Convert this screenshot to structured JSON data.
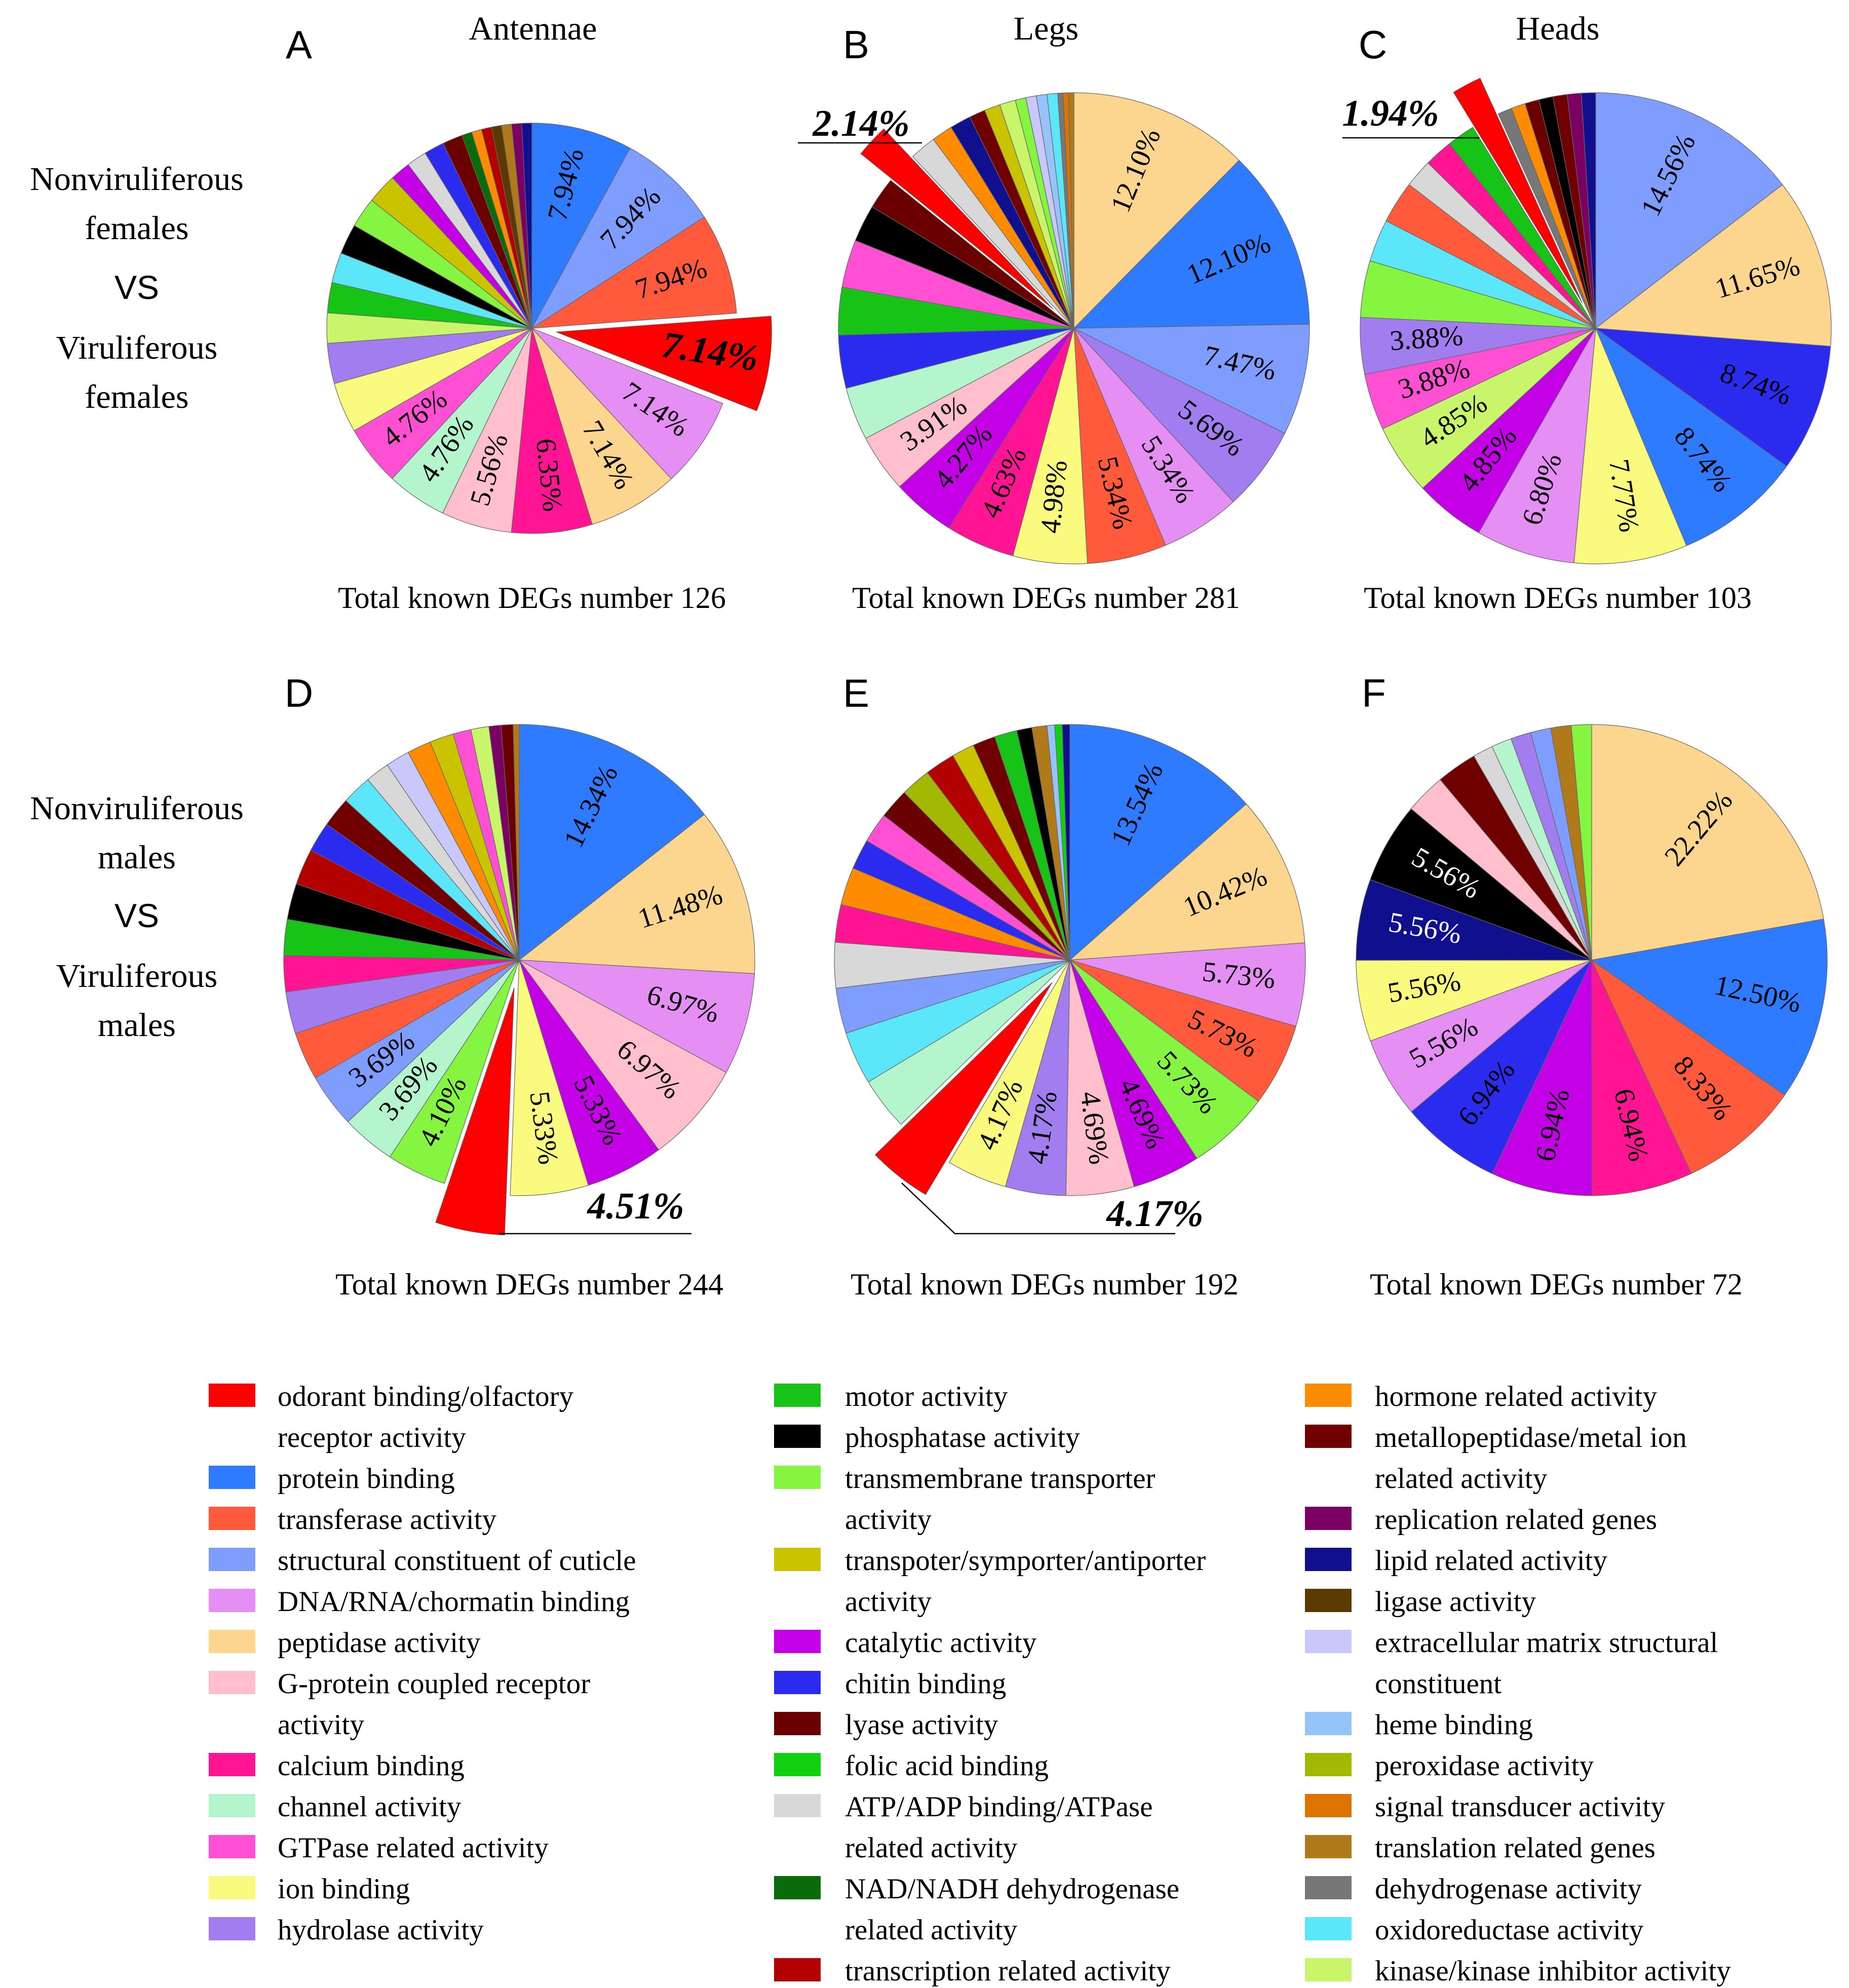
{
  "row_labels": [
    [
      "Nonviruliferous",
      "females",
      "VS",
      "Viruliferous",
      "females"
    ],
    [
      "Nonviruliferous",
      "males",
      "VS",
      "Viruliferous",
      "males"
    ]
  ],
  "colors": {
    "red": "#ff0000",
    "blue": "#2f7bff",
    "periwinkle": "#7f9dff",
    "tomato": "#ff5a3c",
    "violet": "#e58ff5",
    "wheat": "#fcd58e",
    "pink": "#ffbfcc",
    "magenta": "#ff1493",
    "mint": "#b5f5cd",
    "hotpink": "#ff4fd3",
    "yellow": "#fafa7f",
    "purple": "#a27df0",
    "green": "#17c317",
    "black": "#000000",
    "lime": "#85f542",
    "olive": "#c9c300",
    "purple2": "#c300e6",
    "blue2": "#2b2bf0",
    "maroon": "#6b0000",
    "green2": "#12cf12",
    "silver": "#d8d8d8",
    "darkgreen": "#0a6b0a",
    "crimson": "#b30000",
    "orange": "#ff8c00",
    "darkred": "#700000",
    "plum": "#7a0063",
    "navy": "#10108f",
    "brown": "#5a3a00",
    "lavender": "#c8c8fa",
    "skyblue": "#94c4fa",
    "olive2": "#a3b800",
    "orange2": "#dd7300",
    "bronze": "#b07a1a",
    "gray": "#777777",
    "cyan": "#5ce6fa",
    "yellowgreen": "#c9f56a"
  },
  "legend": [
    {
      "lines": [
        "odorant binding/olfactory",
        "receptor activity"
      ],
      "color": "red"
    },
    {
      "lines": [
        "protein binding"
      ],
      "color": "blue"
    },
    {
      "lines": [
        "transferase activity"
      ],
      "color": "tomato"
    },
    {
      "lines": [
        "structural constituent of cuticle"
      ],
      "color": "periwinkle"
    },
    {
      "lines": [
        "DNA/RNA/chormatin binding"
      ],
      "color": "violet"
    },
    {
      "lines": [
        "peptidase activity"
      ],
      "color": "wheat"
    },
    {
      "lines": [
        "G-protein coupled receptor",
        "activity"
      ],
      "color": "pink"
    },
    {
      "lines": [
        "calcium binding"
      ],
      "color": "magenta"
    },
    {
      "lines": [
        "channel activity"
      ],
      "color": "mint"
    },
    {
      "lines": [
        "GTPase related activity"
      ],
      "color": "hotpink"
    },
    {
      "lines": [
        "ion binding"
      ],
      "color": "yellow"
    },
    {
      "lines": [
        "hydrolase activity"
      ],
      "color": "purple"
    },
    {
      "lines": [
        "motor activity"
      ],
      "color": "green"
    },
    {
      "lines": [
        "phosphatase activity"
      ],
      "color": "black"
    },
    {
      "lines": [
        "transmembrane transporter",
        "activity"
      ],
      "color": "lime"
    },
    {
      "lines": [
        "transpoter/symporter/antiporter",
        "activity"
      ],
      "color": "olive"
    },
    {
      "lines": [
        "catalytic activity"
      ],
      "color": "purple2"
    },
    {
      "lines": [
        "chitin binding"
      ],
      "color": "blue2"
    },
    {
      "lines": [
        "lyase activity"
      ],
      "color": "maroon"
    },
    {
      "lines": [
        "folic acid binding"
      ],
      "color": "green2"
    },
    {
      "lines": [
        "ATP/ADP binding/ATPase",
        "related activity"
      ],
      "color": "silver"
    },
    {
      "lines": [
        "NAD/NADH dehydrogenase",
        "related activity"
      ],
      "color": "darkgreen"
    },
    {
      "lines": [
        "transcription related activity"
      ],
      "color": "crimson"
    },
    {
      "lines": [
        "hormone related activity"
      ],
      "color": "orange"
    },
    {
      "lines": [
        "metallopeptidase/metal ion",
        "related activity"
      ],
      "color": "darkred"
    },
    {
      "lines": [
        "replication related genes"
      ],
      "color": "plum"
    },
    {
      "lines": [
        "lipid related activity"
      ],
      "color": "navy"
    },
    {
      "lines": [
        "ligase activity"
      ],
      "color": "brown"
    },
    {
      "lines": [
        "extracellular matrix structural",
        "constituent"
      ],
      "color": "lavender"
    },
    {
      "lines": [
        "heme binding"
      ],
      "color": "skyblue"
    },
    {
      "lines": [
        "peroxidase activity"
      ],
      "color": "olive2"
    },
    {
      "lines": [
        "signal transducer activity"
      ],
      "color": "orange2"
    },
    {
      "lines": [
        "translation related genes"
      ],
      "color": "bronze"
    },
    {
      "lines": [
        "dehydrogenase activity"
      ],
      "color": "gray"
    },
    {
      "lines": [
        "oxidoreductase activity"
      ],
      "color": "cyan"
    },
    {
      "lines": [
        "kinase/kinase inhibitor activity"
      ],
      "color": "yellowgreen"
    }
  ],
  "chart_data": [
    {
      "type": "pie",
      "panel": "A",
      "title": "Antennae",
      "total_label": "Total known DEGs number 126",
      "callout": "7.14%",
      "slices": [
        {
          "value": 7.94,
          "label": "7.94%",
          "color": "blue"
        },
        {
          "value": 7.94,
          "label": "7.94%",
          "color": "periwinkle"
        },
        {
          "value": 7.94,
          "label": "7.94%",
          "color": "tomato"
        },
        {
          "value": 7.14,
          "label": "7.14%",
          "color": "red",
          "exploded": true
        },
        {
          "value": 7.14,
          "label": "7.14%",
          "color": "violet"
        },
        {
          "value": 7.14,
          "label": "7.14%",
          "color": "wheat"
        },
        {
          "value": 6.35,
          "label": "6.35%",
          "color": "magenta"
        },
        {
          "value": 5.56,
          "label": "5.56%",
          "color": "pink"
        },
        {
          "value": 4.76,
          "label": "4.76%",
          "color": "mint"
        },
        {
          "value": 4.76,
          "label": "4.76%",
          "color": "hotpink"
        },
        {
          "value": 3.97,
          "color": "yellow"
        },
        {
          "value": 3.17,
          "color": "purple"
        },
        {
          "value": 2.38,
          "color": "yellowgreen"
        },
        {
          "value": 2.38,
          "color": "green"
        },
        {
          "value": 2.38,
          "color": "cyan"
        },
        {
          "value": 2.38,
          "color": "black"
        },
        {
          "value": 2.38,
          "color": "lime"
        },
        {
          "value": 2.38,
          "color": "olive"
        },
        {
          "value": 1.59,
          "color": "purple2"
        },
        {
          "value": 1.59,
          "color": "silver"
        },
        {
          "value": 1.59,
          "color": "blue2"
        },
        {
          "value": 1.59,
          "color": "maroon"
        },
        {
          "value": 0.79,
          "color": "darkgreen"
        },
        {
          "value": 0.79,
          "color": "orange"
        },
        {
          "value": 0.79,
          "color": "crimson"
        },
        {
          "value": 0.79,
          "color": "brown"
        },
        {
          "value": 0.79,
          "color": "bronze"
        },
        {
          "value": 0.79,
          "color": "plum"
        },
        {
          "value": 0.79,
          "color": "navy"
        }
      ]
    },
    {
      "type": "pie",
      "panel": "B",
      "title": "Legs",
      "total_label": "Total known DEGs number 281",
      "callout": "2.14%",
      "slices": [
        {
          "value": 12.1,
          "label": "12.10%",
          "color": "wheat"
        },
        {
          "value": 12.1,
          "label": "12.10%",
          "color": "blue"
        },
        {
          "value": 7.47,
          "label": "7.47%",
          "color": "periwinkle"
        },
        {
          "value": 5.69,
          "label": "5.69%",
          "color": "purple"
        },
        {
          "value": 5.34,
          "label": "5.34%",
          "color": "violet"
        },
        {
          "value": 5.34,
          "label": "5.34%",
          "color": "tomato"
        },
        {
          "value": 4.98,
          "label": "4.98%",
          "color": "yellow"
        },
        {
          "value": 4.63,
          "label": "4.63%",
          "color": "magenta"
        },
        {
          "value": 4.27,
          "label": "4.27%",
          "color": "purple2"
        },
        {
          "value": 3.91,
          "label": "3.91%",
          "color": "pink"
        },
        {
          "value": 3.56,
          "color": "mint"
        },
        {
          "value": 3.56,
          "color": "blue2"
        },
        {
          "value": 3.2,
          "color": "green"
        },
        {
          "value": 3.2,
          "color": "hotpink"
        },
        {
          "value": 2.49,
          "color": "black"
        },
        {
          "value": 2.14,
          "color": "maroon"
        },
        {
          "value": 2.14,
          "color": "red",
          "exploded": true
        },
        {
          "value": 1.78,
          "color": "silver"
        },
        {
          "value": 1.42,
          "color": "orange"
        },
        {
          "value": 1.42,
          "color": "navy"
        },
        {
          "value": 1.07,
          "color": "darkred"
        },
        {
          "value": 1.07,
          "color": "olive"
        },
        {
          "value": 1.07,
          "color": "yellowgreen"
        },
        {
          "value": 0.71,
          "color": "lime"
        },
        {
          "value": 0.71,
          "color": "lavender"
        },
        {
          "value": 0.71,
          "color": "skyblue"
        },
        {
          "value": 0.71,
          "color": "cyan"
        },
        {
          "value": 0.36,
          "color": "gray"
        },
        {
          "value": 0.36,
          "color": "orange2"
        },
        {
          "value": 0.36,
          "color": "bronze"
        }
      ]
    },
    {
      "type": "pie",
      "panel": "C",
      "title": "Heads",
      "total_label": "Total known DEGs number 103",
      "callout": "1.94%",
      "slices": [
        {
          "value": 14.56,
          "label": "14.56%",
          "color": "periwinkle"
        },
        {
          "value": 11.65,
          "label": "11.65%",
          "color": "wheat"
        },
        {
          "value": 8.74,
          "label": "8.74%",
          "color": "blue2"
        },
        {
          "value": 8.74,
          "label": "8.74%",
          "color": "blue"
        },
        {
          "value": 7.77,
          "label": "7.77%",
          "color": "yellow"
        },
        {
          "value": 6.8,
          "label": "6.80%",
          "color": "violet"
        },
        {
          "value": 4.85,
          "label": "4.85%",
          "color": "purple2"
        },
        {
          "value": 4.85,
          "label": "4.85%",
          "color": "yellowgreen"
        },
        {
          "value": 3.88,
          "label": "3.88%",
          "color": "hotpink"
        },
        {
          "value": 3.88,
          "label": "3.88%",
          "color": "purple"
        },
        {
          "value": 3.88,
          "color": "lime"
        },
        {
          "value": 2.91,
          "color": "cyan"
        },
        {
          "value": 2.91,
          "color": "tomato"
        },
        {
          "value": 1.94,
          "color": "silver"
        },
        {
          "value": 1.94,
          "color": "magenta"
        },
        {
          "value": 1.94,
          "color": "green"
        },
        {
          "value": 1.94,
          "color": "red",
          "exploded": true
        },
        {
          "value": 0.97,
          "color": "gray"
        },
        {
          "value": 0.97,
          "color": "orange"
        },
        {
          "value": 0.97,
          "color": "maroon"
        },
        {
          "value": 0.97,
          "color": "black"
        },
        {
          "value": 0.97,
          "color": "darkred"
        },
        {
          "value": 0.97,
          "color": "plum"
        },
        {
          "value": 0.97,
          "color": "navy"
        }
      ]
    },
    {
      "type": "pie",
      "panel": "D",
      "title": "",
      "total_label": "Total known DEGs number 244",
      "callout": "4.51%",
      "slices": [
        {
          "value": 14.34,
          "label": "14.34%",
          "color": "blue"
        },
        {
          "value": 11.48,
          "label": "11.48%",
          "color": "wheat"
        },
        {
          "value": 6.97,
          "label": "6.97%",
          "color": "violet"
        },
        {
          "value": 6.97,
          "label": "6.97%",
          "color": "pink"
        },
        {
          "value": 5.33,
          "label": "5.33%",
          "color": "purple2"
        },
        {
          "value": 5.33,
          "label": "5.33%",
          "color": "yellow"
        },
        {
          "value": 4.51,
          "color": "red",
          "exploded": true
        },
        {
          "value": 4.1,
          "label": "4.10%",
          "color": "lime"
        },
        {
          "value": 3.69,
          "label": "3.69%",
          "color": "mint"
        },
        {
          "value": 3.69,
          "label": "3.69%",
          "color": "periwinkle"
        },
        {
          "value": 3.28,
          "color": "tomato"
        },
        {
          "value": 2.87,
          "color": "purple"
        },
        {
          "value": 2.46,
          "color": "magenta"
        },
        {
          "value": 2.46,
          "color": "green"
        },
        {
          "value": 2.46,
          "color": "black"
        },
        {
          "value": 2.46,
          "color": "crimson"
        },
        {
          "value": 2.05,
          "color": "blue2"
        },
        {
          "value": 2.05,
          "color": "darkred"
        },
        {
          "value": 2.05,
          "color": "cyan"
        },
        {
          "value": 1.64,
          "color": "silver"
        },
        {
          "value": 1.64,
          "color": "lavender"
        },
        {
          "value": 1.64,
          "color": "orange"
        },
        {
          "value": 1.64,
          "color": "olive"
        },
        {
          "value": 1.23,
          "color": "hotpink"
        },
        {
          "value": 1.23,
          "color": "yellowgreen"
        },
        {
          "value": 0.82,
          "color": "plum"
        },
        {
          "value": 0.82,
          "color": "maroon"
        },
        {
          "value": 0.41,
          "color": "bronze"
        }
      ]
    },
    {
      "type": "pie",
      "panel": "E",
      "title": "",
      "total_label": "Total known DEGs number 192",
      "callout": "4.17%",
      "slices": [
        {
          "value": 13.54,
          "label": "13.54%",
          "color": "blue"
        },
        {
          "value": 10.42,
          "label": "10.42%",
          "color": "wheat"
        },
        {
          "value": 5.73,
          "label": "5.73%",
          "color": "violet"
        },
        {
          "value": 5.73,
          "label": "5.73%",
          "color": "tomato"
        },
        {
          "value": 5.73,
          "label": "5.73%",
          "color": "lime"
        },
        {
          "value": 4.69,
          "label": "4.69%",
          "color": "purple2"
        },
        {
          "value": 4.69,
          "label": "4.69%",
          "color": "pink"
        },
        {
          "value": 4.17,
          "label": "4.17%",
          "color": "purple"
        },
        {
          "value": 4.17,
          "label": "4.17%",
          "color": "yellow"
        },
        {
          "value": 4.17,
          "color": "red",
          "exploded": true
        },
        {
          "value": 3.65,
          "color": "mint"
        },
        {
          "value": 3.65,
          "color": "cyan"
        },
        {
          "value": 3.13,
          "color": "periwinkle"
        },
        {
          "value": 3.13,
          "color": "silver"
        },
        {
          "value": 2.6,
          "color": "magenta"
        },
        {
          "value": 2.6,
          "color": "orange"
        },
        {
          "value": 2.08,
          "color": "blue2"
        },
        {
          "value": 2.08,
          "color": "hotpink"
        },
        {
          "value": 2.08,
          "color": "maroon"
        },
        {
          "value": 2.08,
          "color": "olive2"
        },
        {
          "value": 2.08,
          "color": "crimson"
        },
        {
          "value": 1.56,
          "color": "olive"
        },
        {
          "value": 1.56,
          "color": "darkred"
        },
        {
          "value": 1.56,
          "color": "green"
        },
        {
          "value": 1.04,
          "color": "black"
        },
        {
          "value": 1.04,
          "color": "bronze"
        },
        {
          "value": 0.52,
          "color": "skyblue"
        },
        {
          "value": 0.52,
          "color": "green2"
        },
        {
          "value": 0.52,
          "color": "navy"
        }
      ]
    },
    {
      "type": "pie",
      "panel": "F",
      "title": "",
      "total_label": "Total known DEGs number 72",
      "callout": "",
      "slices": [
        {
          "value": 22.22,
          "label": "22.22%",
          "color": "wheat"
        },
        {
          "value": 12.5,
          "label": "12.50%",
          "color": "blue"
        },
        {
          "value": 8.33,
          "label": "8.33%",
          "color": "tomato"
        },
        {
          "value": 6.94,
          "label": "6.94%",
          "color": "magenta"
        },
        {
          "value": 6.94,
          "label": "6.94%",
          "color": "purple2"
        },
        {
          "value": 6.94,
          "label": "6.94%",
          "color": "blue2"
        },
        {
          "value": 5.56,
          "label": "5.56%",
          "color": "violet"
        },
        {
          "value": 5.56,
          "label": "5.56%",
          "color": "yellow"
        },
        {
          "value": 5.56,
          "label": "5.56%",
          "color": "navy",
          "dark": true
        },
        {
          "value": 5.56,
          "label": "5.56%",
          "color": "black",
          "dark": true
        },
        {
          "value": 2.78,
          "color": "pink"
        },
        {
          "value": 2.78,
          "color": "darkred"
        },
        {
          "value": 1.39,
          "color": "silver"
        },
        {
          "value": 1.39,
          "color": "mint"
        },
        {
          "value": 1.39,
          "color": "purple"
        },
        {
          "value": 1.39,
          "color": "periwinkle"
        },
        {
          "value": 1.39,
          "color": "bronze"
        },
        {
          "value": 1.39,
          "color": "lime"
        }
      ]
    }
  ]
}
